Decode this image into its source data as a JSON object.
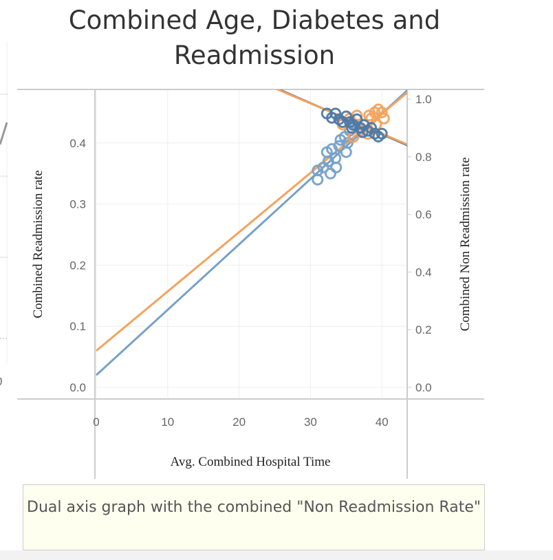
{
  "chart_data": {
    "type": "scatter",
    "title": "Combined Age, Diabetes and Readmission",
    "xlabel": "Avg. Combined Hospital Time",
    "ylabel_left": "Combined Readmission rate",
    "ylabel_right": "Combined Non Readmission rate",
    "xlim": [
      0,
      43.6
    ],
    "ylim_left": [
      -0.018,
      0.47
    ],
    "ylim_right": [
      -0.04,
      1.07
    ],
    "x_ticks": [
      "0",
      "10",
      "20",
      "30",
      "40"
    ],
    "y_left_ticks": [
      "0.0",
      "0.1",
      "0.2",
      "0.3",
      "0.4"
    ],
    "y_right_ticks": [
      "0.0",
      "0.2",
      "0.4",
      "0.6",
      "0.8",
      "1.0"
    ],
    "grid": true,
    "series": [
      {
        "axis": "left",
        "color": "#76a1c8",
        "marker": "open-circle",
        "points": [
          [
            31,
            0.34
          ],
          [
            31,
            0.355
          ],
          [
            31.8,
            0.36
          ],
          [
            32.5,
            0.37
          ],
          [
            32.3,
            0.385
          ],
          [
            33,
            0.39
          ],
          [
            33.5,
            0.375
          ],
          [
            34,
            0.395
          ],
          [
            34.2,
            0.405
          ],
          [
            34.8,
            0.41
          ],
          [
            35,
            0.385
          ],
          [
            35.5,
            0.42
          ],
          [
            36,
            0.41
          ],
          [
            36.3,
            0.43
          ],
          [
            36.8,
            0.425
          ],
          [
            33.6,
            0.36
          ],
          [
            32.8,
            0.35
          ],
          [
            35.2,
            0.4
          ]
        ],
        "trend": {
          "intercept": 0.02,
          "slope": 0.0107
        }
      },
      {
        "axis": "left",
        "color": "#f5a25d",
        "marker": "open-circle",
        "points": [
          [
            36,
            0.41
          ],
          [
            37,
            0.42
          ],
          [
            37.5,
            0.43
          ],
          [
            38,
            0.415
          ],
          [
            38.5,
            0.44
          ],
          [
            39,
            0.45
          ],
          [
            39.5,
            0.455
          ],
          [
            40,
            0.45
          ],
          [
            40.3,
            0.44
          ],
          [
            39.2,
            0.43
          ],
          [
            38.2,
            0.445
          ],
          [
            36.5,
            0.445
          ],
          [
            34.5,
            0.43
          ],
          [
            35.5,
            0.44
          ]
        ],
        "trend": {
          "intercept": 0.06,
          "slope": 0.0097
        }
      },
      {
        "axis": "right",
        "color": "#4e79a7",
        "marker": "open-circle",
        "points": [
          [
            32.3,
            0.95
          ],
          [
            33.5,
            0.95
          ],
          [
            34,
            0.93
          ],
          [
            34.5,
            0.92
          ],
          [
            35,
            0.94
          ],
          [
            35.5,
            0.92
          ],
          [
            36,
            0.91
          ],
          [
            36.5,
            0.93
          ],
          [
            37,
            0.9
          ],
          [
            37.5,
            0.91
          ],
          [
            38,
            0.89
          ],
          [
            38.5,
            0.9
          ],
          [
            39,
            0.88
          ],
          [
            39.5,
            0.87
          ],
          [
            40,
            0.88
          ],
          [
            33,
            0.935
          ],
          [
            35.8,
            0.9
          ],
          [
            37.3,
            0.885
          ]
        ],
        "trend": {
          "intercept": 1.31,
          "slope": -0.0108
        }
      },
      {
        "axis": "right",
        "color": "#f5a25d",
        "marker": "line-only",
        "points": [],
        "trend": {
          "intercept": 1.3,
          "slope": -0.0105
        }
      }
    ],
    "left_partial_tick": "0"
  },
  "caption": "Dual axis graph with the combined \"Non Readmission Rate\""
}
